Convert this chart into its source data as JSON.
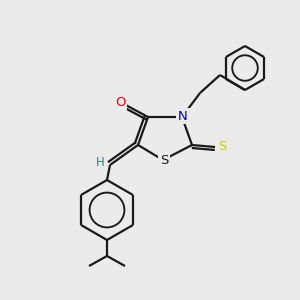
{
  "background_color": "#ebebeb",
  "bond_color": "#1a1a1a",
  "atom_colors": {
    "O": "#ff0000",
    "N": "#0000cc",
    "S_thioxo": "#cccc00",
    "S_ring": "#1a1a1a",
    "H": "#2a8080",
    "C": "#1a1a1a"
  },
  "lw": 1.6,
  "fontsize": 9.5
}
